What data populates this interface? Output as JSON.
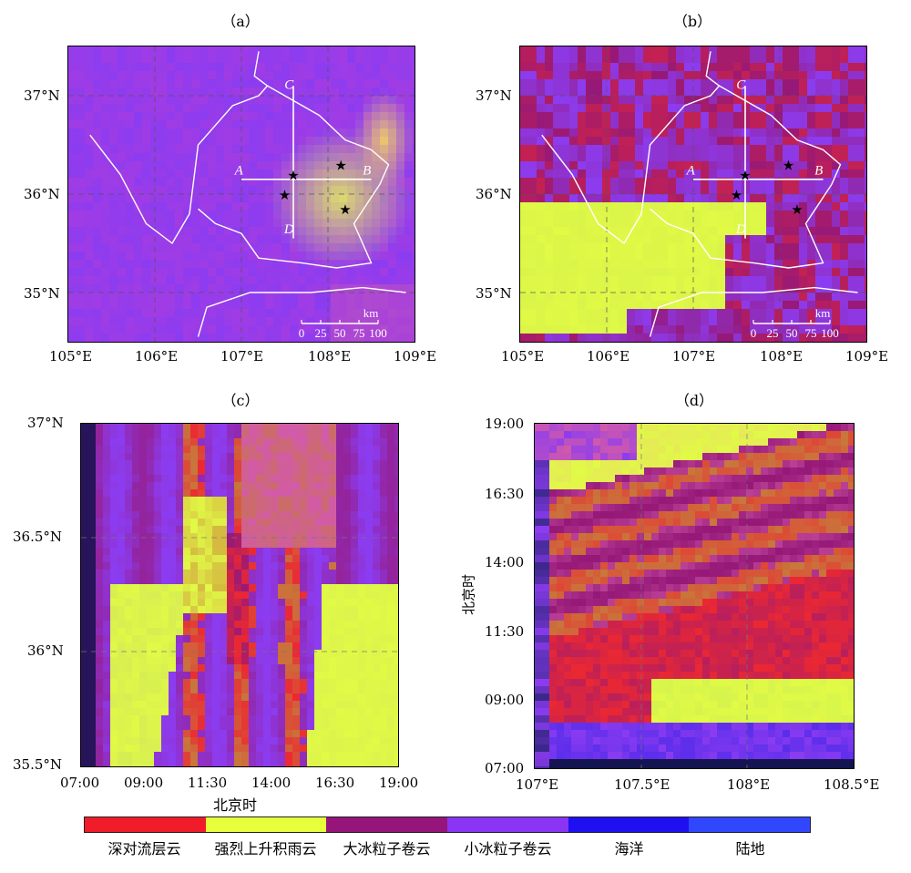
{
  "panels": {
    "a": {
      "title": "（a）"
    },
    "b": {
      "title": "（b）"
    },
    "c": {
      "title": "（c）"
    },
    "d": {
      "title": "（d）"
    }
  },
  "map_ticks": {
    "lon": [
      "105°E",
      "106°E",
      "107°E",
      "108°E",
      "109°E"
    ],
    "lat": [
      "37°N",
      "36°N",
      "35°N"
    ]
  },
  "map_annotations": {
    "section_labels": [
      "A",
      "B",
      "C",
      "D"
    ],
    "scale_unit": "km",
    "scale_ticks": [
      "0",
      "25",
      "50",
      "75",
      "100"
    ]
  },
  "panel_c": {
    "y_ticks": [
      "37°N",
      "36.5°N",
      "36°N",
      "35.5°N"
    ],
    "x_ticks": [
      "07:00",
      "09:00",
      "11:30",
      "14:00",
      "16:30",
      "19:00"
    ],
    "x_title": "北京时"
  },
  "panel_d": {
    "y_ticks": [
      "19:00",
      "16:30",
      "14:00",
      "11:30",
      "09:00",
      "07:00"
    ],
    "x_ticks": [
      "107°E",
      "107.5°E",
      "108°E",
      "108.5°E"
    ],
    "y_title": "北京时"
  },
  "legend": [
    {
      "label": "深对流层云",
      "color": "#f01c2a"
    },
    {
      "label": "强烈上升积雨云",
      "color": "#e6ff3a"
    },
    {
      "label": "大冰粒子卷云",
      "color": "#96157a"
    },
    {
      "label": "小冰粒子卷云",
      "color": "#8a34f4"
    },
    {
      "label": "海洋",
      "color": "#1f10f2"
    },
    {
      "label": "陆地",
      "color": "#3046ff"
    }
  ],
  "chart_data": [
    {
      "type": "heatmap",
      "title": "（a）",
      "xlim": [
        105,
        109
      ],
      "ylim": [
        34.5,
        37.5
      ],
      "x_tick_labels": [
        "105°E",
        "106°E",
        "107°E",
        "108°E",
        "109°E"
      ],
      "y_tick_labels": [
        "37°N",
        "36°N",
        "35°N"
      ],
      "stations_lonlat": [
        [
          107.6,
          36.2
        ],
        [
          108.15,
          36.3
        ],
        [
          107.5,
          36.0
        ],
        [
          108.2,
          35.85
        ]
      ],
      "section_A_B": {
        "from": [
          107.0,
          36.15
        ],
        "to": [
          108.5,
          36.15
        ]
      },
      "section_C_D": {
        "from": [
          107.6,
          37.1
        ],
        "to": [
          107.6,
          35.55
        ]
      }
    },
    {
      "type": "heatmap",
      "title": "（b）",
      "xlim": [
        105,
        109
      ],
      "ylim": [
        34.5,
        37.5
      ],
      "x_tick_labels": [
        "105°E",
        "106°E",
        "107°E",
        "108°E",
        "109°E"
      ],
      "y_tick_labels": [
        "37°N",
        "36°N",
        "35°N"
      ],
      "stations_lonlat": [
        [
          107.6,
          36.2
        ],
        [
          108.1,
          36.3
        ],
        [
          107.5,
          36.0
        ],
        [
          108.2,
          35.85
        ]
      ],
      "section_A_B": {
        "from": [
          107.0,
          36.15
        ],
        "to": [
          108.5,
          36.15
        ]
      },
      "section_C_D": {
        "from": [
          107.6,
          37.1
        ],
        "to": [
          107.6,
          35.55
        ]
      }
    },
    {
      "type": "heatmap",
      "title": "（c）",
      "xlabel": "北京时",
      "x_tick_labels": [
        "07:00",
        "09:00",
        "11:30",
        "14:00",
        "16:30",
        "19:00"
      ],
      "y_tick_labels": [
        "37°N",
        "36.5°N",
        "36°N",
        "35.5°N"
      ],
      "ylim": [
        35.5,
        37
      ]
    },
    {
      "type": "heatmap",
      "title": "（d）",
      "ylabel": "北京时",
      "x_tick_labels": [
        "107°E",
        "107.5°E",
        "108°E",
        "108.5°E"
      ],
      "y_tick_labels": [
        "19:00",
        "16:30",
        "14:00",
        "11:30",
        "09:00",
        "07:00"
      ],
      "xlim": [
        107,
        108.5
      ]
    }
  ]
}
